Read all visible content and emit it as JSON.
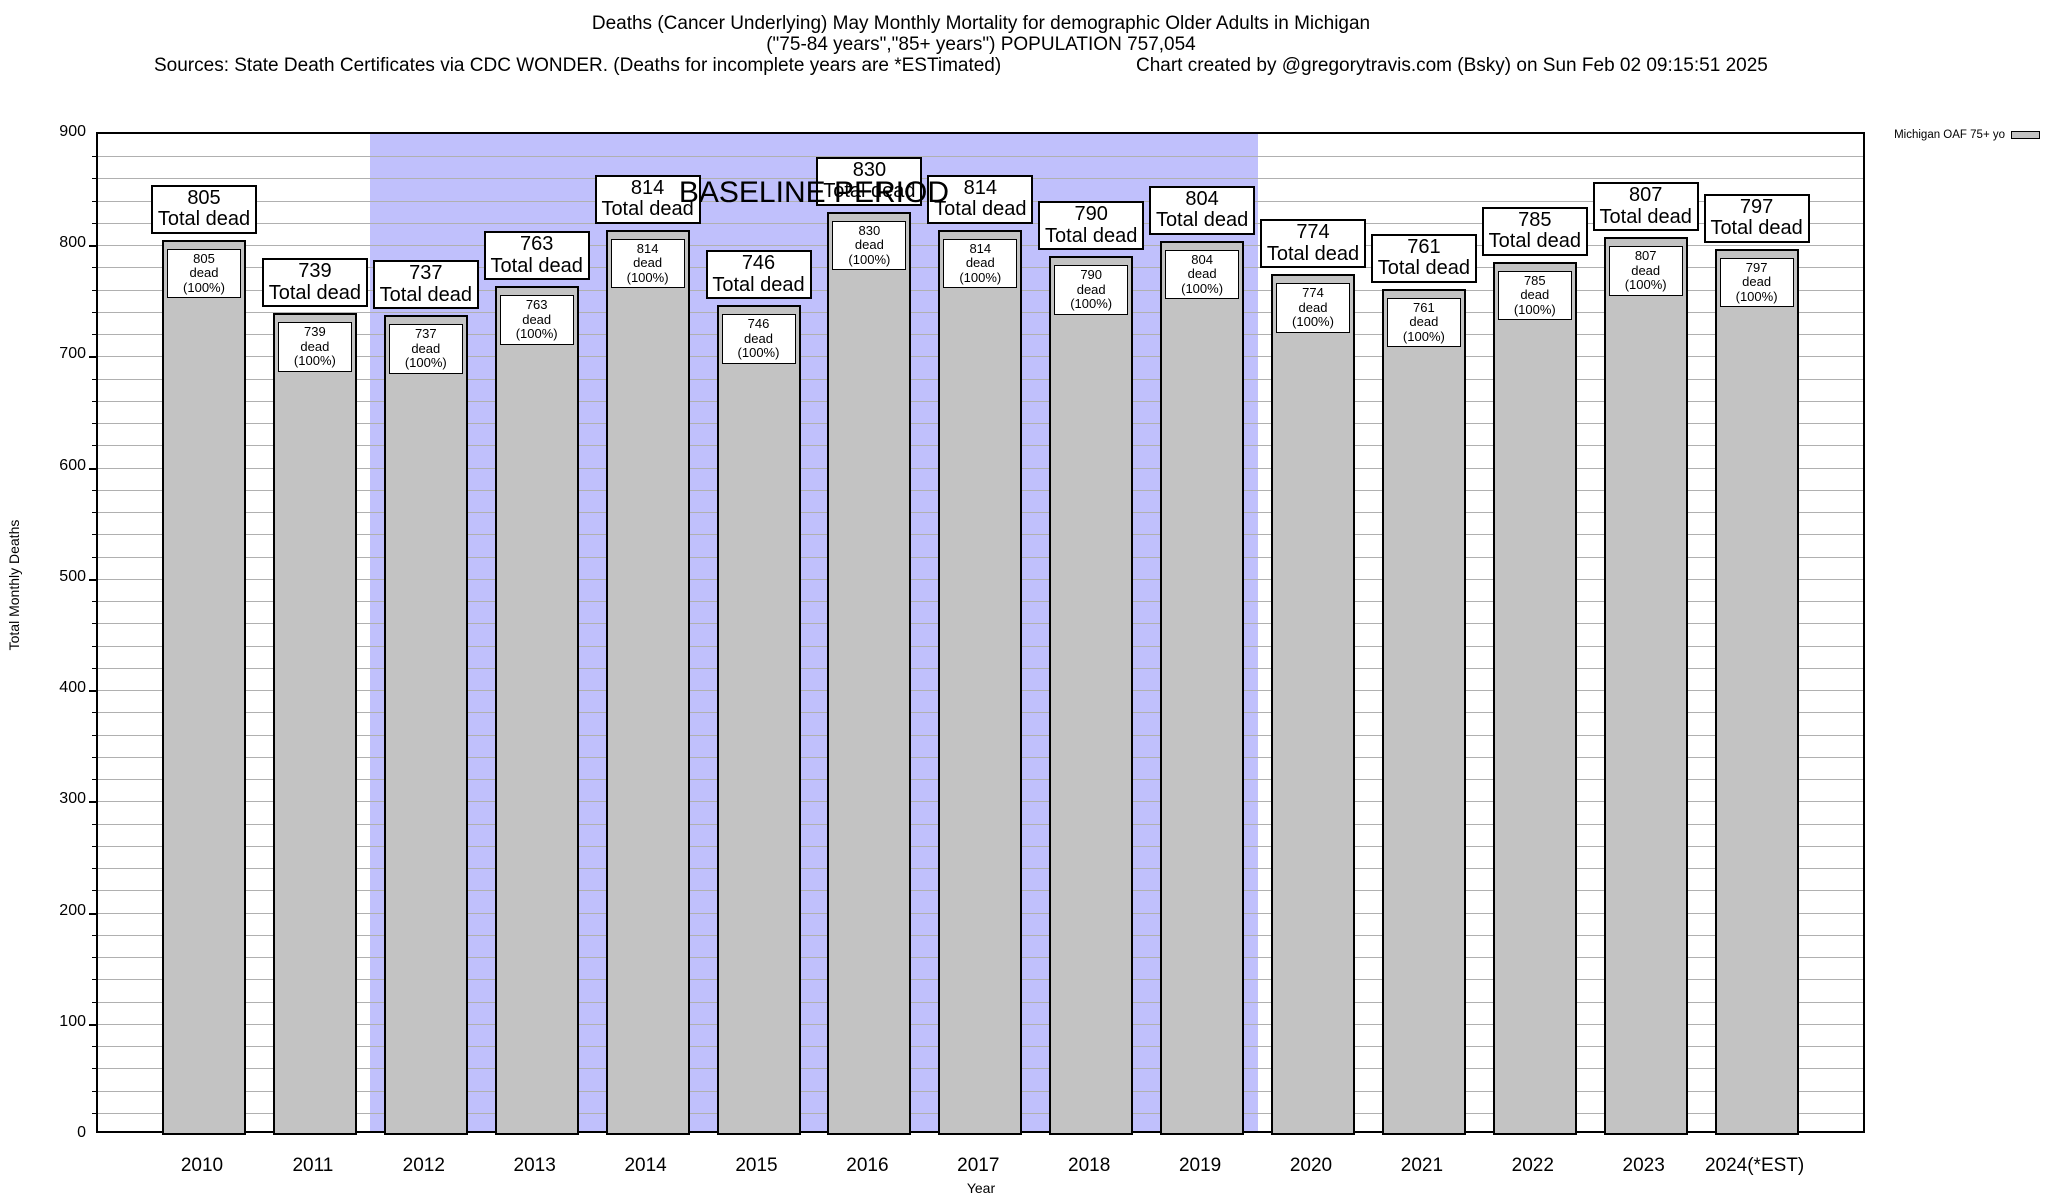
{
  "header": {
    "title_line1": "Deaths (Cancer Underlying) May Monthly Mortality for demographic Older Adults in Michigan",
    "title_line2": "(\"75-84 years\",\"85+ years\") POPULATION 757,054",
    "sources": "Sources: State Death Certificates via CDC WONDER. (Deaths for incomplete years are *ESTimated)",
    "credit": "Chart created by @gregorytravis.com (Bsky) on Sun Feb 02 09:15:51 2025"
  },
  "legend": {
    "label": "Michigan OAF 75+ yo"
  },
  "chart_data": {
    "type": "bar",
    "title": "Deaths (Cancer Underlying) May Monthly Mortality for demographic Older Adults in Michigan",
    "subtitle": "(\"75-84 years\",\"85+ years\") POPULATION 757,054",
    "xlabel": "Year",
    "ylabel": "Total Monthly Deaths",
    "ylim": [
      0,
      900
    ],
    "y_tick_step": 100,
    "minor_grid_step": 20,
    "grid": true,
    "legend_position": "top-right",
    "categories": [
      "2010",
      "2011",
      "2012",
      "2013",
      "2014",
      "2015",
      "2016",
      "2017",
      "2018",
      "2019",
      "2020",
      "2021",
      "2022",
      "2023",
      "2024(*EST)"
    ],
    "series": [
      {
        "name": "Michigan OAF 75+ yo",
        "values": [
          805,
          739,
          737,
          763,
          814,
          746,
          830,
          814,
          790,
          804,
          774,
          761,
          785,
          807,
          797
        ]
      }
    ],
    "bar_top_label_suffix": "Total dead",
    "bar_inner_label_suffix": "dead (100%)",
    "annotation": {
      "label": "BASELINE PERIOD",
      "start_category": "2012",
      "end_category": "2019"
    },
    "colors": {
      "bar_fill": "#c3c3c3",
      "baseline_region": "#c0c0fc",
      "gridline": "#b0b0b0",
      "text": "#000000"
    }
  }
}
